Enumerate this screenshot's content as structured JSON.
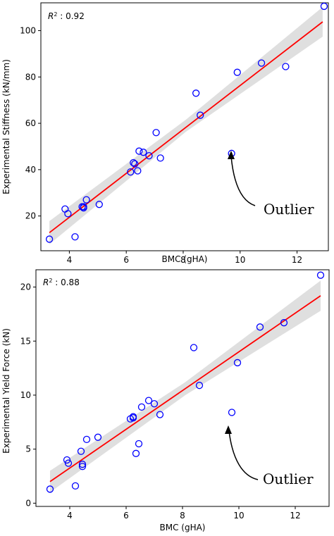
{
  "chart_data": [
    {
      "type": "scatter",
      "xlabel": "BMC (gHA)",
      "ylabel": "Experimental Stiffness (kN/mm)",
      "xlim": [
        3.0,
        13.1
      ],
      "ylim": [
        5,
        112
      ],
      "xticks": [
        4,
        6,
        8,
        10,
        12
      ],
      "yticks": [
        20,
        40,
        60,
        80,
        100
      ],
      "r2_prefix": "R",
      "r2_sup": "2",
      "r2_value": " : 0.92",
      "annotation": "Outlier",
      "colors": {
        "points": "#0000ff",
        "fit": "#ff0000",
        "band": "#d9d9d9"
      },
      "fit": {
        "x": [
          3.3,
          12.9
        ],
        "y": [
          12.8,
          103.8
        ]
      },
      "band": {
        "x": [
          3.3,
          8.1,
          12.9
        ],
        "upper": [
          17.8,
          61.6,
          110.2
        ],
        "lower": [
          7.8,
          56.4,
          97.4
        ]
      },
      "outlier": {
        "x": 9.7,
        "y": 47
      },
      "points": {
        "x": [
          3.3,
          3.85,
          3.95,
          4.2,
          4.45,
          4.5,
          4.5,
          4.6,
          5.05,
          6.15,
          6.25,
          6.3,
          6.4,
          6.45,
          6.6,
          6.8,
          7.05,
          7.2,
          8.45,
          8.6,
          9.7,
          9.9,
          10.75,
          11.6,
          12.95
        ],
        "y": [
          10,
          23,
          21,
          11,
          24,
          23.5,
          24,
          27,
          25,
          39,
          43,
          42.5,
          39.5,
          48,
          47.5,
          46,
          56,
          45,
          73,
          63.5,
          47,
          82,
          86,
          84.5,
          110.5
        ]
      }
    },
    {
      "type": "scatter",
      "xlabel": "BMC (gHA)",
      "ylabel": "Experimental Yield Force (kN)",
      "xlim": [
        2.8,
        13.2
      ],
      "ylim": [
        -0.3,
        21.6
      ],
      "xticks": [
        4,
        6,
        8,
        10,
        12
      ],
      "yticks": [
        0,
        5,
        10,
        15,
        20
      ],
      "r2_prefix": "R",
      "r2_sup": "2",
      "r2_value": " : 0.88",
      "annotation": "Outlier",
      "colors": {
        "points": "#0000ff",
        "fit": "#ff0000",
        "band": "#d9d9d9"
      },
      "fit": {
        "x": [
          3.3,
          12.9
        ],
        "y": [
          2.0,
          19.2
        ]
      },
      "band": {
        "x": [
          3.3,
          8.1,
          12.9
        ],
        "upper": [
          3.0,
          11.2,
          20.6
        ],
        "lower": [
          1.0,
          10.0,
          17.8
        ]
      },
      "outlier": {
        "x": 9.75,
        "y": 8.4
      },
      "points": {
        "x": [
          3.3,
          3.9,
          3.95,
          4.2,
          4.4,
          4.45,
          4.45,
          4.6,
          5.0,
          6.15,
          6.25,
          6.25,
          6.35,
          6.45,
          6.55,
          6.8,
          7.0,
          7.2,
          8.4,
          8.6,
          9.75,
          9.95,
          10.75,
          11.6,
          12.9
        ],
        "y": [
          1.3,
          4.0,
          3.7,
          1.6,
          4.8,
          3.4,
          3.6,
          5.9,
          6.1,
          7.8,
          8.0,
          7.9,
          4.6,
          5.5,
          8.9,
          9.5,
          9.2,
          8.2,
          14.4,
          10.9,
          8.4,
          13.0,
          16.3,
          16.7,
          21.1
        ]
      }
    }
  ]
}
